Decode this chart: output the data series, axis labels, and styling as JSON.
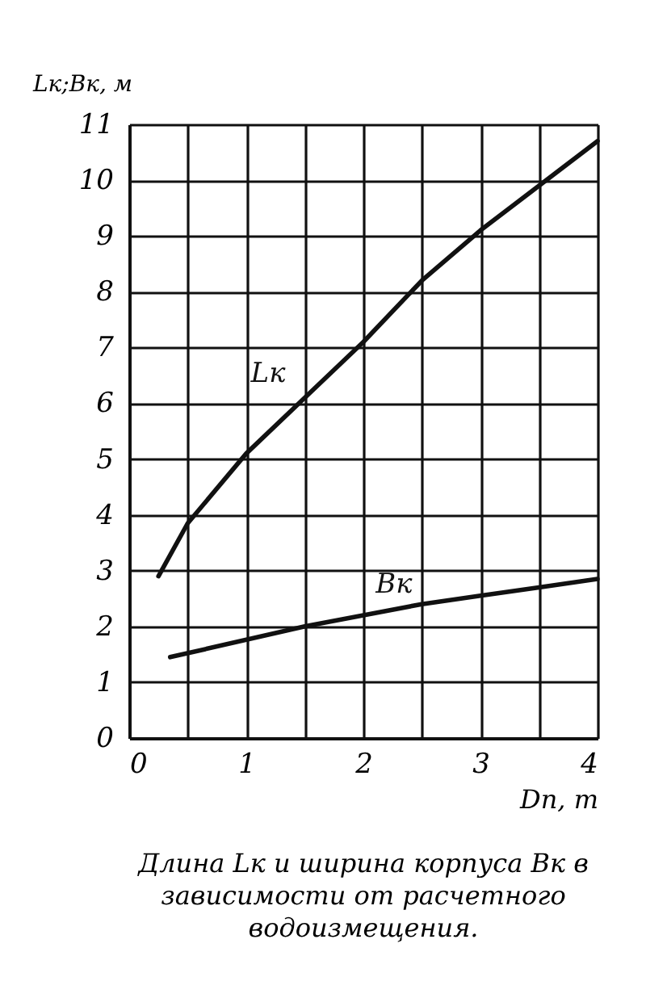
{
  "chart_data": {
    "type": "line",
    "xlabel": "Dп, т",
    "ylabel": "Lк;Bк, м",
    "series": [
      {
        "name": "Lк",
        "color": "#111111",
        "x": [
          0.25,
          0.5,
          1,
          1.5,
          2,
          2.5,
          3,
          3.5,
          4
        ],
        "values": [
          2.9,
          3.85,
          5.1,
          6.1,
          7.1,
          8.2,
          9.1,
          9.9,
          10.7
        ]
      },
      {
        "name": "Bк",
        "color": "#111111",
        "x": [
          0.35,
          1.5,
          2,
          2.5,
          3,
          3.5,
          4
        ],
        "values": [
          1.45,
          2.0,
          2.2,
          2.4,
          2.55,
          2.7,
          2.85
        ]
      }
    ],
    "xlim": [
      0,
      4
    ],
    "ylim": [
      0,
      11
    ],
    "xticks": [
      0,
      {
        "value": 0.5,
        "label": null
      },
      1,
      {
        "value": 1.5,
        "label": null
      },
      2,
      {
        "value": 2.5,
        "label": null
      },
      3,
      {
        "value": 3.5,
        "label": null
      },
      4
    ],
    "yticks": [
      0,
      1,
      2,
      3,
      4,
      5,
      6,
      7,
      8,
      9,
      10,
      11
    ],
    "grid": true,
    "marker": "none",
    "line_style": "solid",
    "annotations": [
      "Длина Lк и ширина корпуса Bк в зависимости от расчетного водоизмещения."
    ]
  }
}
